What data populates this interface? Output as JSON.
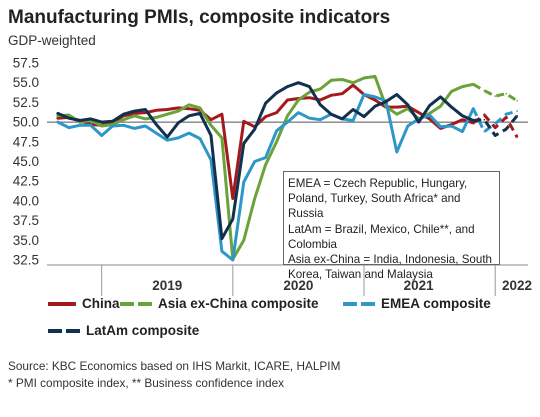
{
  "chart_data": {
    "type": "line",
    "title": "Manufacturing PMIs, composite indicators",
    "subtitle": "GDP-weighted",
    "ylim": [
      32.5,
      57.5
    ],
    "y_ticks": [
      "57.5",
      "55.0",
      "52.5",
      "50.0",
      "47.5",
      "45.0",
      "42.5",
      "40.0",
      "37.5",
      "35.0",
      "32.5"
    ],
    "x_tick_labels": [
      "2019",
      "2020",
      "2021",
      "2022"
    ],
    "x_range": [
      "2018-08",
      "2022-04"
    ],
    "reference_line": 50.0,
    "forecast_start": "2021-11",
    "x": [
      "2018-09",
      "2018-10",
      "2018-11",
      "2018-12",
      "2019-01",
      "2019-02",
      "2019-03",
      "2019-04",
      "2019-05",
      "2019-06",
      "2019-07",
      "2019-08",
      "2019-09",
      "2019-10",
      "2019-11",
      "2019-12",
      "2020-01",
      "2020-02",
      "2020-03",
      "2020-04",
      "2020-05",
      "2020-06",
      "2020-07",
      "2020-08",
      "2020-09",
      "2020-10",
      "2020-11",
      "2020-12",
      "2021-01",
      "2021-02",
      "2021-03",
      "2021-04",
      "2021-05",
      "2021-06",
      "2021-07",
      "2021-08",
      "2021-09",
      "2021-10",
      "2021-11",
      "2021-12",
      "2022-01",
      "2022-02",
      "2022-03"
    ],
    "series": [
      {
        "name": "China",
        "color": "#a31a1e",
        "values": [
          50.5,
          50.6,
          50.2,
          49.7,
          49.6,
          49.9,
          50.8,
          51.1,
          51.2,
          51.5,
          51.6,
          51.8,
          51.7,
          51.5,
          50.3,
          51.0,
          40.3,
          50.1,
          49.4,
          50.7,
          51.2,
          52.8,
          53.0,
          53.1,
          52.8,
          53.4,
          53.6,
          54.7,
          53.5,
          52.8,
          51.9,
          51.9,
          52.0,
          51.2,
          50.4,
          49.2,
          49.7,
          50.3,
          49.9,
          50.9,
          49.3,
          50.6,
          48.1
        ]
      },
      {
        "name": "Asia ex-China composite",
        "color": "#6aa339",
        "values": [
          50.8,
          50.9,
          50.0,
          50.2,
          49.5,
          49.7,
          50.3,
          50.8,
          50.4,
          50.6,
          51.0,
          51.4,
          52.2,
          51.8,
          49.6,
          48.0,
          32.6,
          35.0,
          40.3,
          44.6,
          47.5,
          50.8,
          52.8,
          53.8,
          54.2,
          55.3,
          55.4,
          55.0,
          55.6,
          55.8,
          52.0,
          51.0,
          51.7,
          50.4,
          51.1,
          52.0,
          53.9,
          54.5,
          54.8,
          54.0,
          53.3,
          53.6,
          52.7
        ]
      },
      {
        "name": "EMEA composite",
        "color": "#2f97c8",
        "values": [
          50.0,
          49.3,
          49.6,
          49.6,
          48.3,
          49.5,
          49.6,
          49.2,
          49.5,
          48.6,
          47.7,
          48.0,
          48.6,
          47.9,
          45.2,
          33.6,
          32.5,
          42.4,
          45.0,
          45.5,
          48.9,
          50.0,
          51.2,
          50.5,
          50.3,
          51.0,
          50.4,
          50.2,
          53.5,
          53.2,
          52.7,
          46.2,
          49.5,
          50.4,
          50.9,
          49.4,
          49.5,
          48.8,
          51.7,
          48.8,
          49.8,
          51.0,
          51.4
        ]
      },
      {
        "name": "LatAm composite",
        "color": "#12304f",
        "values": [
          51.1,
          50.5,
          50.2,
          50.4,
          50.0,
          50.1,
          51.0,
          51.4,
          51.6,
          49.7,
          48.1,
          49.9,
          50.8,
          51.1,
          48.3,
          35.2,
          37.7,
          47.3,
          49.1,
          52.4,
          53.7,
          54.5,
          55.0,
          54.5,
          52.2,
          51.0,
          50.4,
          51.6,
          50.7,
          52.0,
          52.6,
          53.5,
          52.2,
          50.0,
          52.1,
          53.2,
          51.9,
          50.8,
          50.2,
          50.3,
          48.3,
          49.1,
          50.8
        ]
      }
    ]
  },
  "annotation": {
    "lines": [
      "EMEA = Czech Republic, Hungary, Poland, Turkey, South Africa* and Russia",
      "LatAm = Brazil, Mexico, Chile**, and Colombia",
      "Asia ex-China = India, Indonesia, South Korea, Taiwan and Malaysia"
    ]
  },
  "legend": [
    "China",
    "Asia ex-China composite",
    "EMEA composite",
    "LatAm composite"
  ],
  "footnotes": [
    "Source: KBC Economics based on IHS Markit, ICARE, HALPIM",
    "* PMI composite index, ** Business confidence index"
  ]
}
